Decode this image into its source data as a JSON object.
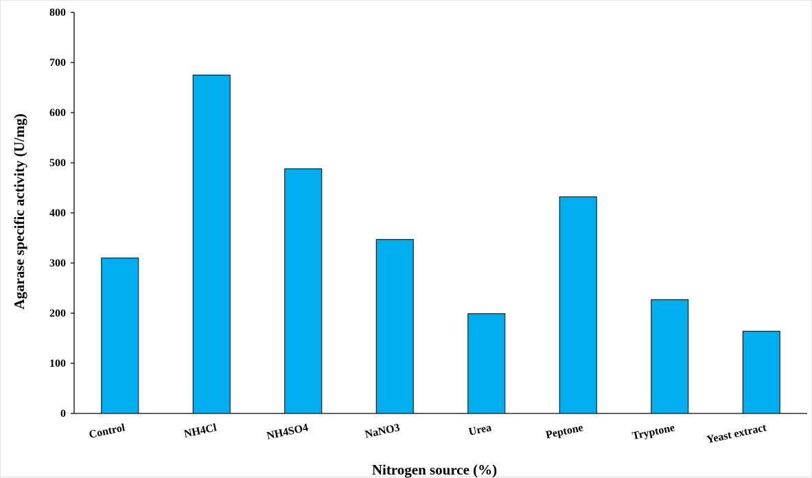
{
  "chart_data": {
    "type": "bar",
    "title": "",
    "xlabel": "Nitrogen source (%)",
    "ylabel": "Agarase specific activity (U/mg)",
    "categories": [
      "Control",
      "NH4Cl",
      "NH4SO4",
      "NaNO3",
      "Urea",
      "Peptone",
      "Tryptone",
      "Yeast extract"
    ],
    "values": [
      310,
      675,
      488,
      347,
      199,
      432,
      227,
      164
    ],
    "ylim": [
      0,
      800
    ],
    "yticks": [
      0,
      100,
      200,
      300,
      400,
      500,
      600,
      700,
      800
    ],
    "grid": false,
    "legend": "none",
    "colors": {
      "bar_fill": "#00AEEF",
      "bar_stroke": "#000000",
      "axis": "#000000"
    }
  }
}
